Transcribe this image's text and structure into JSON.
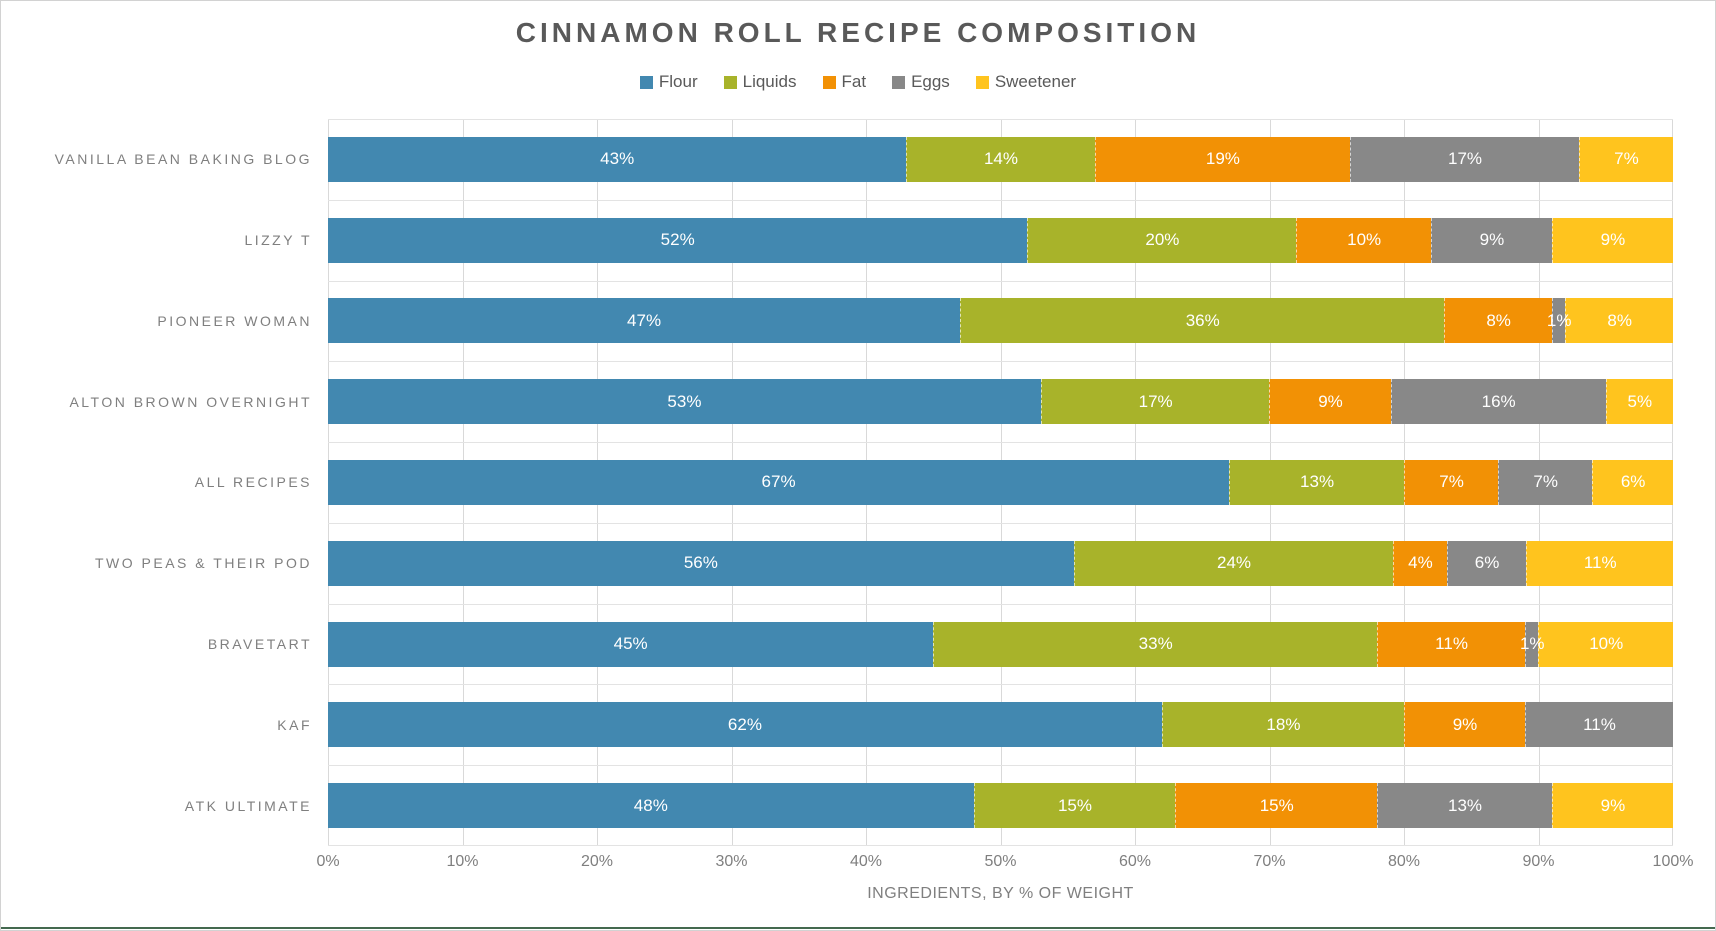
{
  "title": "CINNAMON ROLL RECIPE COMPOSITION",
  "xlabel": "INGREDIENTS, BY % OF WEIGHT",
  "colors": {
    "flour": "#4288B0",
    "liquids": "#A8B32A",
    "fat": "#F29105",
    "eggs": "#888888",
    "sweetener": "#FFC41E",
    "bottom_accent": "#44694F"
  },
  "chart_data": {
    "type": "bar",
    "orientation": "horizontal",
    "stacked": true,
    "title": "CINNAMON ROLL RECIPE COMPOSITION",
    "xlabel": "INGREDIENTS, BY % OF WEIGHT",
    "xlim": [
      0,
      100
    ],
    "x_ticks": [
      "0%",
      "10%",
      "20%",
      "30%",
      "40%",
      "50%",
      "60%",
      "70%",
      "80%",
      "90%",
      "100%"
    ],
    "grid": true,
    "legend_position": "top",
    "categories": [
      "VANILLA BEAN BAKING BLOG",
      "LIZZY T",
      "PIONEER WOMAN",
      "ALTON BROWN OVERNIGHT",
      "ALL RECIPES",
      "TWO PEAS & THEIR POD",
      "BRAVETART",
      "KAF",
      "ATK ULTIMATE"
    ],
    "series": [
      {
        "name": "Flour",
        "color": "#4288B0",
        "values": [
          43,
          52,
          47,
          53,
          67,
          56,
          45,
          62,
          48
        ]
      },
      {
        "name": "Liquids",
        "color": "#A8B32A",
        "values": [
          14,
          20,
          36,
          17,
          13,
          24,
          33,
          18,
          15
        ]
      },
      {
        "name": "Fat",
        "color": "#F29105",
        "values": [
          19,
          10,
          8,
          9,
          7,
          4,
          11,
          9,
          15
        ]
      },
      {
        "name": "Eggs",
        "color": "#888888",
        "values": [
          17,
          9,
          1,
          16,
          7,
          6,
          1,
          11,
          13
        ]
      },
      {
        "name": "Sweetener",
        "color": "#FFC41E",
        "values": [
          7,
          9,
          8,
          5,
          6,
          11,
          10,
          0,
          9
        ]
      }
    ],
    "data_label_format": "{value}%",
    "data_label_color": "#FFFFFF"
  }
}
